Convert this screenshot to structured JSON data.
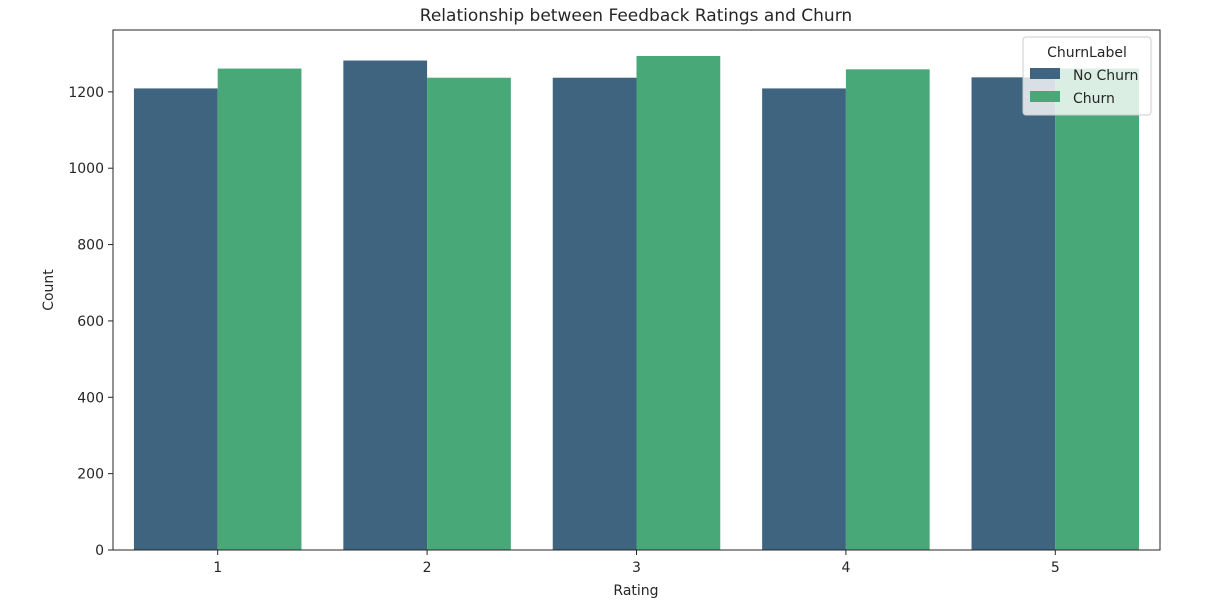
{
  "chart_data": {
    "type": "bar",
    "title": "Relationship between Feedback Ratings and Churn",
    "xlabel": "Rating",
    "ylabel": "Count",
    "categories": [
      "1",
      "2",
      "3",
      "4",
      "5"
    ],
    "ylim": [
      0,
      1362
    ],
    "yticks": [
      0,
      200,
      400,
      600,
      800,
      1000,
      1200
    ],
    "series": [
      {
        "name": "No Churn",
        "color": "#3e6480",
        "values": [
          1209,
          1282,
          1237,
          1209,
          1238
        ]
      },
      {
        "name": "Churn",
        "color": "#48a878",
        "values": [
          1261,
          1237,
          1294,
          1259,
          1261
        ]
      }
    ],
    "legend": {
      "title": "ChurnLabel",
      "position": "top-right"
    },
    "grid": false
  }
}
